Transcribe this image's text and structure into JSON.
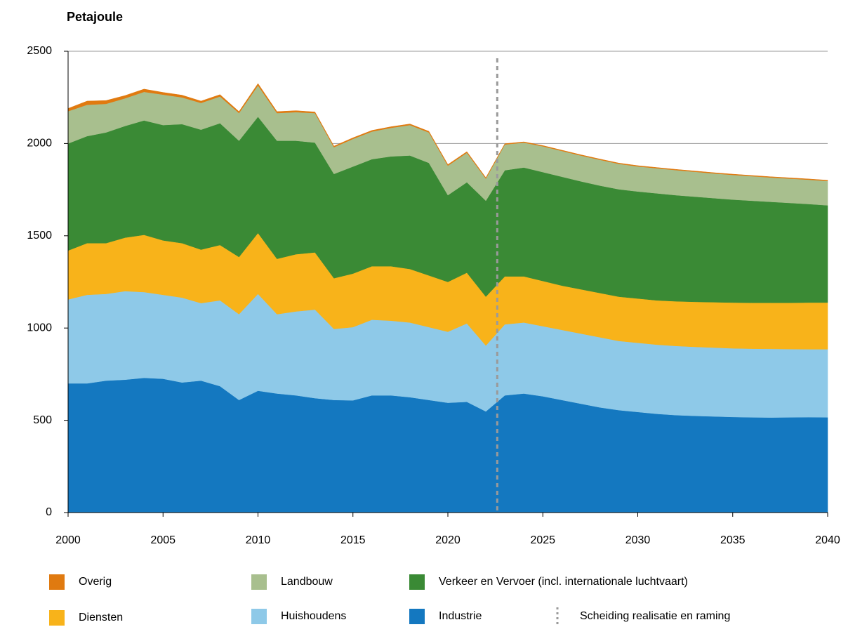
{
  "chart_data": {
    "type": "stacked_area",
    "y_axis_label": "Petajoule",
    "x": [
      2000,
      2001,
      2002,
      2003,
      2004,
      2005,
      2006,
      2007,
      2008,
      2009,
      2010,
      2011,
      2012,
      2013,
      2014,
      2015,
      2016,
      2017,
      2018,
      2019,
      2020,
      2021,
      2022,
      2023,
      2024,
      2025,
      2026,
      2027,
      2028,
      2029,
      2030,
      2031,
      2032,
      2033,
      2034,
      2035,
      2036,
      2037,
      2038,
      2039,
      2040
    ],
    "series": [
      {
        "name": "Industrie",
        "color": "#1478c0",
        "values": [
          700,
          700,
          715,
          720,
          730,
          725,
          705,
          715,
          685,
          610,
          660,
          645,
          635,
          620,
          610,
          608,
          635,
          635,
          625,
          610,
          595,
          600,
          548,
          635,
          645,
          630,
          610,
          590,
          570,
          555,
          545,
          535,
          528,
          524,
          521,
          518,
          516,
          515,
          516,
          517,
          516
        ]
      },
      {
        "name": "Huishoudens",
        "color": "#8ec9e8",
        "values": [
          455,
          480,
          470,
          480,
          465,
          455,
          460,
          420,
          465,
          465,
          525,
          430,
          455,
          480,
          385,
          397,
          410,
          405,
          405,
          395,
          385,
          425,
          357,
          385,
          385,
          380,
          380,
          380,
          380,
          375,
          375,
          375,
          375,
          374,
          373,
          372,
          372,
          372,
          370,
          368,
          369
        ]
      },
      {
        "name": "Diensten",
        "color": "#f8b31a",
        "values": [
          265,
          280,
          275,
          290,
          310,
          295,
          295,
          290,
          300,
          310,
          330,
          300,
          310,
          310,
          275,
          290,
          290,
          295,
          290,
          280,
          270,
          275,
          265,
          260,
          250,
          245,
          240,
          240,
          240,
          240,
          240,
          240,
          242,
          244,
          246,
          248,
          249,
          250,
          251,
          253,
          253
        ]
      },
      {
        "name": "Verkeer en Vervoer (incl. internationale luchtvaart)",
        "color": "#3a8a35",
        "values": [
          580,
          580,
          600,
          605,
          620,
          625,
          645,
          650,
          660,
          630,
          630,
          640,
          615,
          595,
          565,
          580,
          580,
          595,
          615,
          610,
          470,
          490,
          520,
          575,
          590,
          590,
          590,
          585,
          582,
          582,
          580,
          580,
          575,
          570,
          564,
          558,
          553,
          547,
          541,
          534,
          527
        ]
      },
      {
        "name": "Landbouw",
        "color": "#a8bf8e",
        "values": [
          175,
          170,
          155,
          150,
          155,
          165,
          145,
          145,
          145,
          150,
          170,
          150,
          155,
          160,
          145,
          150,
          150,
          155,
          165,
          165,
          160,
          160,
          120,
          140,
          135,
          140,
          140,
          140,
          140,
          138,
          136,
          136,
          136,
          135,
          134,
          134,
          133,
          132,
          132,
          132,
          132
        ]
      },
      {
        "name": "Overig",
        "color": "#e07a10",
        "values": [
          15,
          20,
          18,
          15,
          15,
          12,
          12,
          10,
          10,
          8,
          10,
          8,
          8,
          6,
          6,
          6,
          6,
          6,
          6,
          6,
          6,
          6,
          5,
          4,
          4,
          4,
          4,
          4,
          4,
          4,
          4,
          4,
          4,
          4,
          4,
          4,
          4,
          4,
          4,
          4,
          4
        ]
      }
    ],
    "divider": {
      "x": 2022.6,
      "label": "Scheiding realisatie en raming",
      "color": "#9a9a9a"
    },
    "xlim": [
      2000,
      2040
    ],
    "xticks": [
      2000,
      2005,
      2010,
      2015,
      2020,
      2025,
      2030,
      2035,
      2040
    ],
    "ylim": [
      0,
      2500
    ],
    "yticks": [
      0,
      500,
      1000,
      1500,
      2000,
      2500
    ],
    "grid": true
  }
}
